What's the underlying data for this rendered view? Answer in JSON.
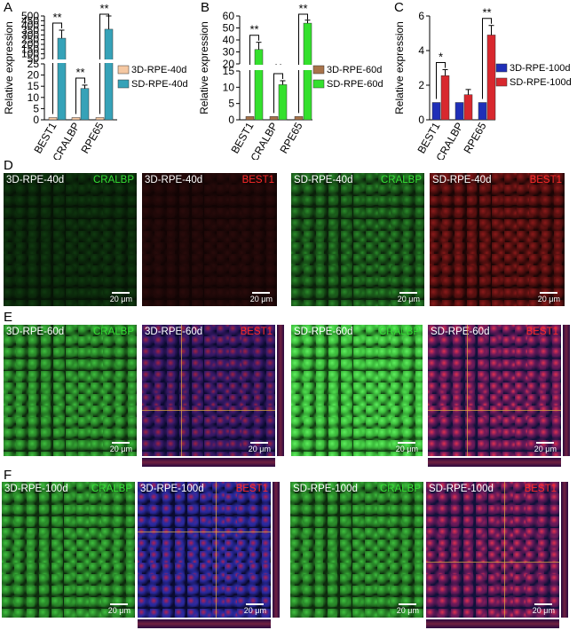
{
  "panels": {
    "A": "A",
    "B": "B",
    "C": "C",
    "D": "D",
    "E": "E",
    "F": "F"
  },
  "chart_data": [
    {
      "type": "bar",
      "categories": [
        "BEST1",
        "CRALBP",
        "RPE65"
      ],
      "ylabel": "Relative expression",
      "axis_lower": {
        "min": 0,
        "max": 25,
        "ticks": [
          "0",
          "5",
          "10",
          "15",
          "20",
          "25"
        ]
      },
      "axis_upper": {
        "min": 50,
        "max": 500,
        "ticks": [
          "50",
          "100",
          "150",
          "200",
          "250",
          "300",
          "350",
          "400",
          "450",
          "500"
        ]
      },
      "series": [
        {
          "name": "3D-RPE-40d",
          "color": "#f5c8a2",
          "values": [
            1,
            1,
            1
          ]
        },
        {
          "name": "SD-RPE-40d",
          "color": "#36a2b8",
          "values": [
            265,
            14,
            360
          ]
        }
      ],
      "errors": [
        [
          0,
          0,
          0
        ],
        [
          85,
          1.5,
          145
        ]
      ],
      "significance": [
        "**",
        "**",
        "**"
      ]
    },
    {
      "type": "bar",
      "categories": [
        "BEST1",
        "CRALBP",
        "RPE65"
      ],
      "ylabel": "Relative expression",
      "axis_lower": {
        "min": 0,
        "max": 15,
        "ticks": [
          "0",
          "5",
          "10",
          "15"
        ]
      },
      "axis_upper": {
        "min": 20,
        "max": 60,
        "ticks": [
          "20",
          "30",
          "40",
          "50",
          "60"
        ]
      },
      "series": [
        {
          "name": "3D-RPE-60d",
          "color": "#a8734a",
          "values": [
            1,
            1,
            1
          ]
        },
        {
          "name": "SD-RPE-60d",
          "color": "#34e02d",
          "values": [
            32,
            10.8,
            54
          ]
        }
      ],
      "errors": [
        [
          0,
          0,
          0
        ],
        [
          6,
          1.2,
          2.5
        ]
      ],
      "significance": [
        "**",
        "**",
        "**"
      ]
    },
    {
      "type": "bar",
      "categories": [
        "BEST1",
        "CRALBP",
        "RPE65"
      ],
      "ylabel": "Relative expression",
      "ylim": [
        0,
        6
      ],
      "yticks": [
        "0",
        "2",
        "4",
        "6"
      ],
      "series": [
        {
          "name": "3D-RPE-100d",
          "color": "#1f2fb8",
          "values": [
            1,
            1,
            1
          ]
        },
        {
          "name": "SD-RPE-100d",
          "color": "#d8282e",
          "values": [
            2.55,
            1.45,
            4.9
          ]
        }
      ],
      "errors": [
        [
          0,
          0,
          0
        ],
        [
          0.35,
          0.3,
          0.55
        ]
      ],
      "significance": [
        "*",
        "",
        "**"
      ]
    }
  ],
  "images": {
    "D": {
      "tiles": [
        {
          "left": "3D-RPE-40d",
          "right": "CRALBP",
          "right_color": "green",
          "stain": "cralbp-dim"
        },
        {
          "left": "3D-RPE-40d",
          "right": "BEST1",
          "right_color": "red",
          "stain": "best1-dim"
        },
        {
          "left": "SD-RPE-40d",
          "right": "CRALBP",
          "right_color": "green",
          "stain": "cralbp-mid"
        },
        {
          "left": "SD-RPE-40d",
          "right": "BEST1",
          "right_color": "red",
          "stain": "best1-mid"
        }
      ],
      "scale": "20 μm"
    },
    "E": {
      "tiles": [
        {
          "left": "3D-RPE-60d",
          "right": "CRALBP",
          "right_color": "green",
          "stain": "cralbp"
        },
        {
          "left": "3D-RPE-60d",
          "right": "BEST1",
          "right_color": "red",
          "stain": "merge"
        },
        {
          "left": "SD-RPE-60d",
          "right": "CRALBP",
          "right_color": "green",
          "stain": "cralbp-bright"
        },
        {
          "left": "SD-RPE-60d",
          "right": "BEST1",
          "right_color": "red",
          "stain": "merge-bright"
        }
      ],
      "scale": "20 μm"
    },
    "F": {
      "tiles": [
        {
          "left": "3D-RPE-100d",
          "right": "CRALBP",
          "right_color": "green",
          "stain": "cralbp"
        },
        {
          "left": "3D-RPE-100d",
          "right": "BEST1",
          "right_color": "red",
          "stain": "merge-nuclei"
        },
        {
          "left": "SD-RPE-100d",
          "right": "CRALBP",
          "right_color": "green",
          "stain": "cralbp"
        },
        {
          "left": "SD-RPE-100d",
          "right": "BEST1",
          "right_color": "red",
          "stain": "merge-bright"
        }
      ],
      "scale": "20 μm"
    }
  }
}
